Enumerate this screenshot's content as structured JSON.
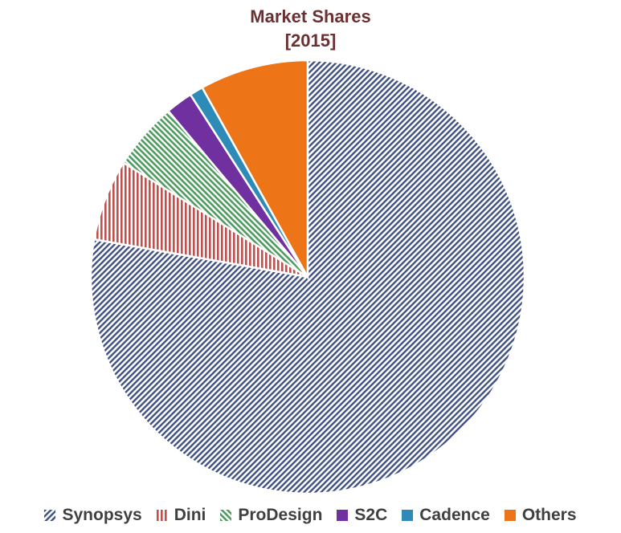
{
  "chart_data": {
    "type": "pie",
    "title": "Market Shares",
    "subtitle": "[2015]",
    "slices": [
      {
        "label": "Synopsys",
        "value": 77,
        "color": "#3f4f82",
        "pattern": "diag-up"
      },
      {
        "label": "Dini",
        "value": 6,
        "color": "#c0504d",
        "pattern": "vertical"
      },
      {
        "label": "ProDesign",
        "value": 5,
        "color": "#4e9a5f",
        "pattern": "diag-down"
      },
      {
        "label": "S2C",
        "value": 2,
        "color": "#7030a0",
        "pattern": "solid"
      },
      {
        "label": "Cadence",
        "value": 1,
        "color": "#2e8bb8",
        "pattern": "solid"
      },
      {
        "label": "Others",
        "value": 8,
        "color": "#ed7417",
        "pattern": "solid"
      }
    ],
    "legend_position": "bottom"
  }
}
